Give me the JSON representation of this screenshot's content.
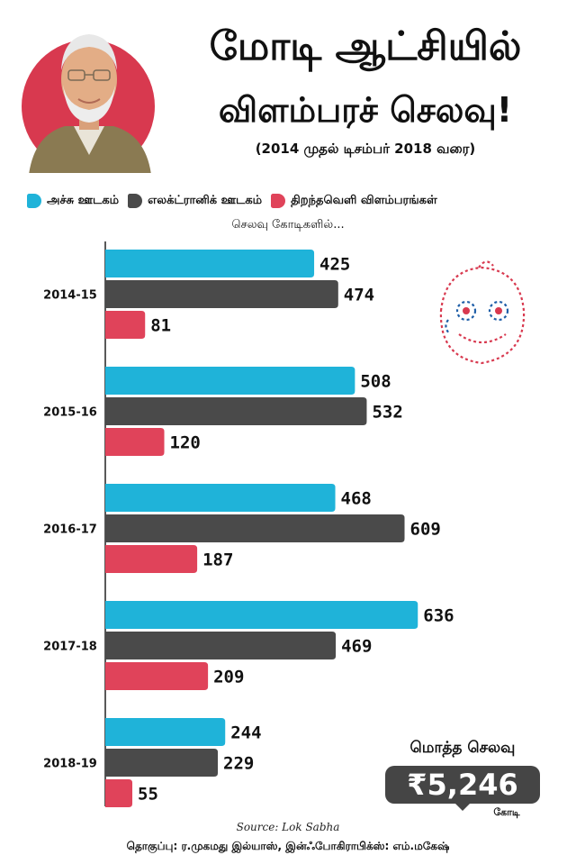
{
  "header": {
    "title_line1": "மோடி ஆட்சியில்",
    "title_line2": "விளம்பரச் செலவு!",
    "subtitle": "(2014 முதல் டிசம்பர் 2018 வரை)"
  },
  "legend": {
    "items": [
      {
        "label": "அச்சு ஊடகம்",
        "color": "#1fb3d9"
      },
      {
        "label": "எலக்ட்ரானிக் ஊடகம்",
        "color": "#4a4a4a"
      },
      {
        "label": "திறந்தவெளி விளம்பரங்கள்",
        "color": "#e0435a"
      }
    ]
  },
  "unit_label": "செலவு கோடிகளில்...",
  "chart_data": {
    "type": "bar",
    "orientation": "horizontal",
    "categories": [
      "2014-15",
      "2015-16",
      "2016-17",
      "2017-18",
      "2018-19"
    ],
    "series": [
      {
        "name": "அச்சு ஊடகம்",
        "color": "#1fb3d9",
        "values": [
          425,
          508,
          468,
          636,
          244
        ]
      },
      {
        "name": "எலக்ட்ரானிக் ஊடகம்",
        "color": "#4a4a4a",
        "values": [
          474,
          532,
          609,
          469,
          229
        ]
      },
      {
        "name": "திறந்தவெளி விளம்பரங்கள்",
        "color": "#e0435a",
        "values": [
          81,
          120,
          187,
          209,
          55
        ]
      }
    ],
    "xlim": [
      0,
      700
    ],
    "grid": false,
    "legend_position": "top"
  },
  "total": {
    "title": "மொத்த செலவு",
    "value": "₹5,246",
    "unit": "கோடி"
  },
  "footer": {
    "source": "Source: Lok Sabha",
    "credits": "தொகுப்பு: ர.முகமது இல்யாஸ், இன்ஃபோகிராபிக்ஸ்: எம்.மகேஷ்"
  }
}
